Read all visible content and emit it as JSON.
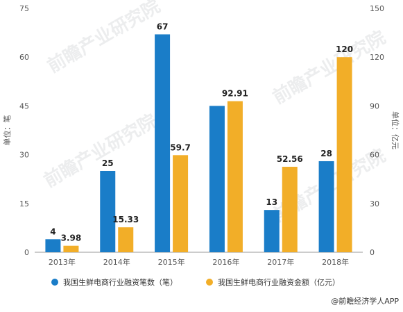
{
  "chart_data": {
    "type": "bar",
    "categories": [
      "2013年",
      "2014年",
      "2015年",
      "2016年",
      "2017年",
      "2018年"
    ],
    "series": [
      {
        "name": "我国生鲜电商行业融资笔数（笔）",
        "axis": "left",
        "color": "#1a7dc8",
        "values": [
          4,
          25,
          67,
          45,
          13,
          28
        ],
        "labels": [
          "4",
          "25",
          "67",
          "",
          "13",
          "28"
        ]
      },
      {
        "name": "我国生鲜电商行业融资金额（亿元）",
        "axis": "right",
        "color": "#f2ae28",
        "values": [
          3.98,
          15.33,
          59.7,
          92.91,
          52.56,
          120
        ],
        "labels": [
          "3.98",
          "15.33",
          "59.7",
          "92.91",
          "52.56",
          "120"
        ]
      }
    ],
    "y_left": {
      "label": "单位：笔",
      "min": 0,
      "max": 75,
      "ticks": [
        0,
        15,
        30,
        45,
        60,
        75
      ]
    },
    "y_right": {
      "label": "单位：亿元",
      "min": 0,
      "max": 150,
      "ticks": [
        0,
        30,
        60,
        90,
        120,
        150
      ]
    },
    "grid": false,
    "legend_position": "bottom"
  },
  "watermark": "前瞻产业研究院",
  "credit": "@前瞻经济学人APP"
}
